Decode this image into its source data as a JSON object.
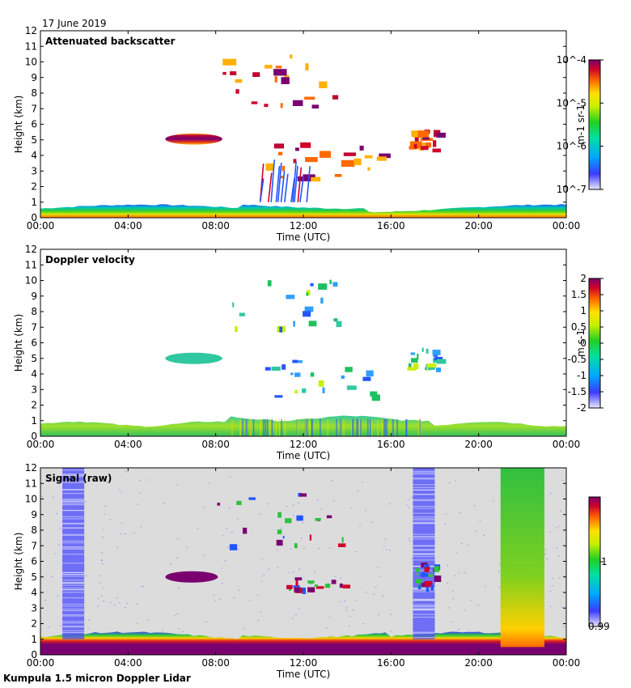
{
  "date": "17 June 2019",
  "footer": "Kumpula 1.5 micron Doppler Lidar",
  "chart_data": [
    {
      "type": "heatmap",
      "title": "Attenuated backscatter",
      "xlabel": "Time (UTC)",
      "ylabel": "Height (km)",
      "xticks": [
        "00:00",
        "04:00",
        "08:00",
        "12:00",
        "16:00",
        "20:00",
        "00:00"
      ],
      "xlim_hours": [
        0,
        24
      ],
      "ylim": [
        0,
        12
      ],
      "yticks": [
        0,
        1,
        2,
        3,
        4,
        5,
        6,
        7,
        8,
        9,
        10,
        11,
        12
      ],
      "colorbar": {
        "scale": "log",
        "ticks": [
          "10^-4",
          "10^-5",
          "10^-6",
          "10^-7"
        ],
        "units": "m-1 sr-1",
        "range": [
          1e-07,
          0.0001
        ]
      },
      "background": "white",
      "features": [
        {
          "kind": "boundary layer",
          "t0": 0,
          "t1": 24,
          "top_km": 0.8
        },
        {
          "kind": "cloud layer",
          "t0": 5.7,
          "t1": 8.3,
          "top_km": 5.3,
          "base_km": 4.8
        },
        {
          "kind": "cloud fragments",
          "t0": 10,
          "t1": 15.5,
          "top_km": 5.0,
          "base_km": 2.6
        },
        {
          "kind": "cloud fragments",
          "t0": 16.7,
          "t1": 18.1,
          "top_km": 5.7,
          "base_km": 4.4
        },
        {
          "kind": "high cloud streaks",
          "t0": 8.3,
          "t1": 13.7,
          "top_km": 10.8,
          "base_km": 7.0
        }
      ]
    },
    {
      "type": "heatmap",
      "title": "Doppler velocity",
      "xlabel": "Time (UTC)",
      "ylabel": "Height (km)",
      "xticks": [
        "00:00",
        "04:00",
        "08:00",
        "12:00",
        "16:00",
        "20:00",
        "00:00"
      ],
      "xlim_hours": [
        0,
        24
      ],
      "ylim": [
        0,
        12
      ],
      "yticks": [
        0,
        1,
        2,
        3,
        4,
        5,
        6,
        7,
        8,
        9,
        10,
        11,
        12
      ],
      "colorbar": {
        "scale": "linear",
        "ticks": [
          "2",
          "1.5",
          "1",
          "0.5",
          "0",
          "-0.5",
          "-1",
          "-1.5",
          "-2"
        ],
        "units": "m s-1",
        "range": [
          -2,
          2
        ]
      },
      "background": "white"
    },
    {
      "type": "heatmap",
      "title": "Signal (raw)",
      "xlabel": "Time (UTC)",
      "ylabel": "Height (km)",
      "xticks": [
        "00:00",
        "04:00",
        "08:00",
        "12:00",
        "16:00",
        "20:00",
        "00:00"
      ],
      "xlim_hours": [
        0,
        24
      ],
      "ylim": [
        0,
        12
      ],
      "yticks": [
        0,
        1,
        2,
        3,
        4,
        5,
        6,
        7,
        8,
        9,
        10,
        11,
        12
      ],
      "colorbar": {
        "scale": "linear",
        "ticks": [
          "1",
          "0.99"
        ],
        "range": [
          0.99,
          1.01
        ]
      },
      "background": "light grey",
      "features": [
        {
          "kind": "noisy column",
          "t0": 1.0,
          "t1": 2.0
        },
        {
          "kind": "noisy column",
          "t0": 17.0,
          "t1": 18.0
        },
        {
          "kind": "elevated signal column",
          "t0": 21.0,
          "t1": 23.0
        }
      ]
    }
  ]
}
